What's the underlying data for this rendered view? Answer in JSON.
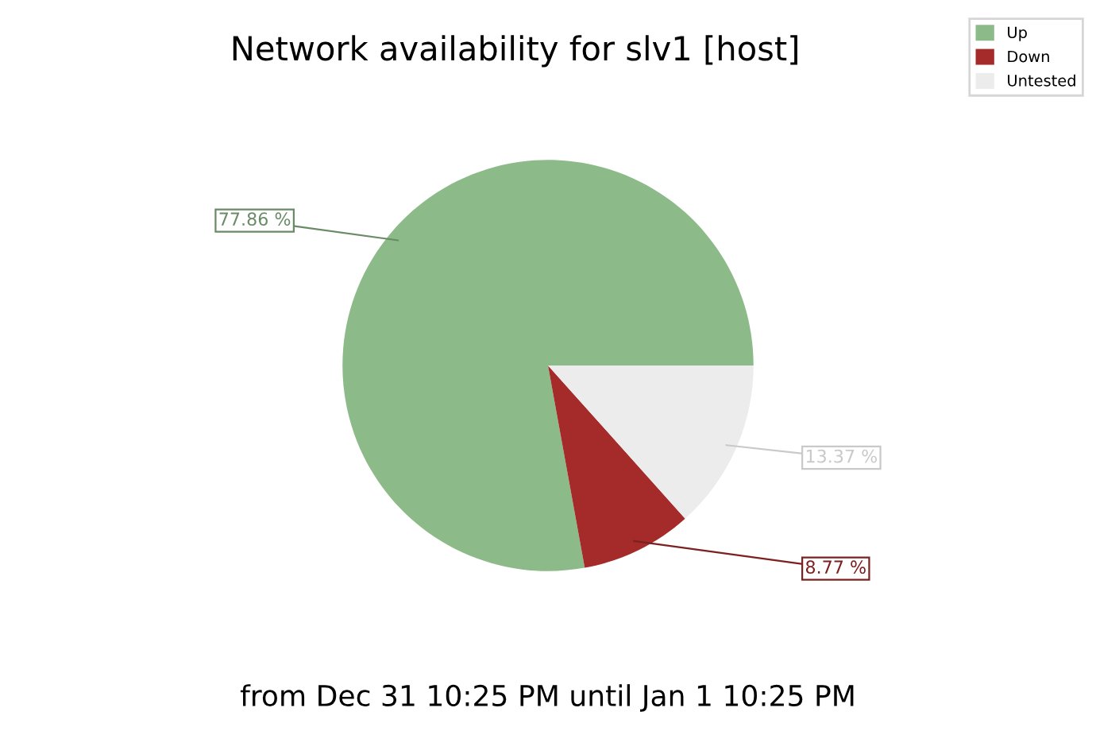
{
  "chart_data": {
    "type": "pie",
    "title": "Network availability for slv1 [host]",
    "categories": [
      "Up",
      "Down",
      "Untested"
    ],
    "values": [
      77.86,
      8.77,
      13.37
    ],
    "colors": [
      "#8cba88",
      "#a52a2a",
      "#ececec"
    ],
    "value_labels": [
      "77.86 %",
      "8.77 %",
      "13.37 %"
    ],
    "legend": "top right",
    "annotations": [
      "from Dec 31 10:25 PM until Jan 1 10:25 PM"
    ]
  }
}
